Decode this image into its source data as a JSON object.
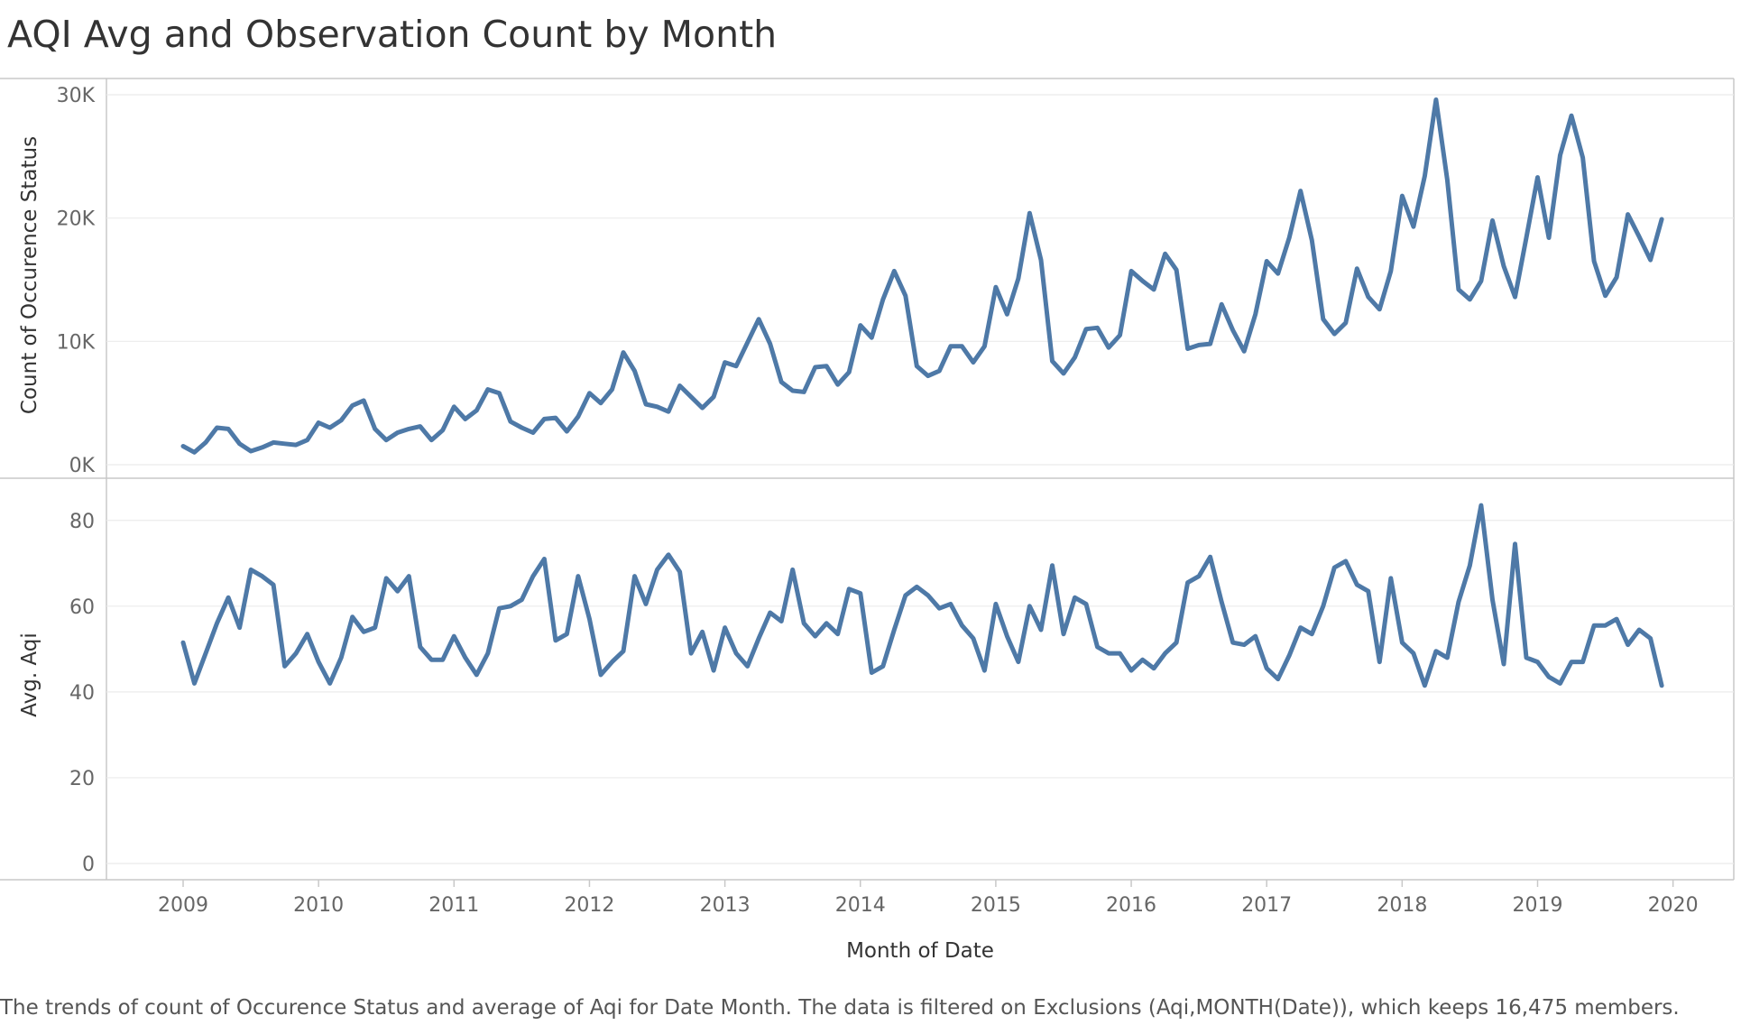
{
  "title": "AQI Avg  and Observation Count by Month",
  "caption": "The trends of count of Occurence Status and average of Aqi for Date Month. The data is filtered on Exclusions (Aqi,MONTH(Date)), which keeps 16,475 members.",
  "colors": {
    "line": "#4e79a7",
    "grid": "#ebebeb",
    "frame": "#c8c8c8",
    "tick_text": "#666666",
    "axis_title": "#333333"
  },
  "chart_data": [
    {
      "type": "line",
      "series_id": "count",
      "ylabel": "Count of Occurence Status",
      "ylim": [
        0,
        30000
      ],
      "yticks": [
        0,
        10000,
        20000,
        30000
      ],
      "ytick_labels": [
        "0K",
        "10K",
        "20K",
        "30K"
      ],
      "x_start": "2009-01",
      "x_step": "month",
      "values": [
        1500,
        1000,
        1800,
        3000,
        2900,
        1700,
        1100,
        1400,
        1800,
        1700,
        1600,
        2000,
        3400,
        3000,
        3600,
        4800,
        5200,
        2900,
        2000,
        2600,
        2900,
        3100,
        2000,
        2800,
        4700,
        3700,
        4400,
        6100,
        5800,
        3500,
        3000,
        2600,
        3700,
        3800,
        2700,
        3900,
        5800,
        5000,
        6100,
        9100,
        7600,
        4900,
        4700,
        4300,
        6400,
        5500,
        4600,
        5500,
        8300,
        8000,
        9900,
        11800,
        9800,
        6700,
        6000,
        5900,
        7900,
        8000,
        6500,
        7500,
        11300,
        10300,
        13400,
        15700,
        13700,
        8000,
        7200,
        7600,
        9600,
        9600,
        8300,
        9600,
        14400,
        12200,
        15100,
        20400,
        16600,
        8400,
        7400,
        8700,
        11000,
        11100,
        9500,
        10500,
        15700,
        14900,
        14200,
        17100,
        15800,
        9400,
        9700,
        9800,
        13000,
        10900,
        9200,
        12200,
        16500,
        15500,
        18400,
        22200,
        18200,
        11800,
        10600,
        11500,
        15900,
        13600,
        12600,
        15700,
        21800,
        19300,
        23400,
        29600,
        23100,
        14200,
        13400,
        14900,
        19800,
        16100,
        13600,
        18400,
        23300,
        18400,
        25100,
        28300,
        24900,
        16500,
        13700,
        15200,
        20300,
        18500,
        16600,
        19900
      ]
    },
    {
      "type": "line",
      "series_id": "aqi",
      "xlabel": "Month of Date",
      "ylabel": "Avg. Aqi",
      "ylim": [
        0,
        85
      ],
      "yticks": [
        0,
        20,
        40,
        60,
        80
      ],
      "ytick_labels": [
        "0",
        "20",
        "40",
        "60",
        "80"
      ],
      "x_start": "2009-01",
      "x_step": "month",
      "xticks": [
        "2009",
        "2010",
        "2011",
        "2012",
        "2013",
        "2014",
        "2015",
        "2016",
        "2017",
        "2018",
        "2019",
        "2020"
      ],
      "values": [
        51.5,
        42.0,
        49.0,
        56.0,
        62.0,
        55.0,
        68.5,
        67.0,
        65.0,
        46.0,
        49.0,
        53.5,
        47.0,
        42.0,
        48.0,
        57.5,
        54.0,
        55.0,
        66.5,
        63.5,
        67.0,
        50.5,
        47.5,
        47.5,
        53.0,
        48.0,
        44.0,
        49.0,
        59.5,
        60.0,
        61.5,
        67.0,
        71.0,
        52.0,
        53.5,
        67.0,
        57.0,
        44.0,
        47.0,
        49.5,
        67.0,
        60.5,
        68.5,
        72.0,
        68.0,
        49.0,
        54.0,
        45.0,
        55.0,
        49.0,
        46.0,
        52.5,
        58.5,
        56.5,
        68.5,
        56.0,
        53.0,
        56.0,
        53.5,
        64.0,
        63.0,
        44.5,
        46.0,
        54.5,
        62.5,
        64.5,
        62.5,
        59.5,
        60.5,
        55.5,
        52.5,
        45.0,
        60.5,
        53.0,
        47.0,
        60.0,
        54.5,
        69.5,
        53.5,
        62.0,
        60.5,
        50.5,
        49.0,
        49.0,
        45.0,
        47.5,
        45.5,
        49.0,
        51.5,
        65.5,
        67.0,
        71.5,
        61.0,
        51.5,
        51.0,
        53.0,
        45.5,
        43.0,
        48.5,
        55.0,
        53.5,
        60.0,
        69.0,
        70.5,
        65.0,
        63.5,
        47.0,
        66.5,
        51.5,
        49.0,
        41.5,
        49.5,
        48.0,
        61.0,
        69.5,
        83.5,
        61.5,
        46.5,
        74.5,
        48.0,
        47.0,
        43.5,
        42.0,
        47.0,
        47.0,
        55.5,
        55.5,
        57.0,
        51.0,
        54.5,
        52.5,
        41.5
      ]
    }
  ]
}
